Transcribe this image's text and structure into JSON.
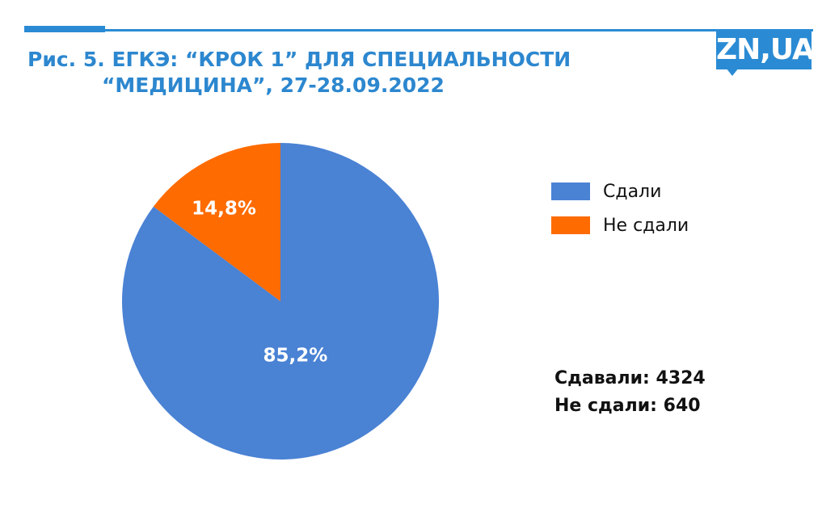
{
  "header": {
    "title_line1": "Рис. 5. ЕГКЭ: “КРОК 1” ДЛЯ СПЕЦИАЛЬНОСТИ",
    "title_line2": "“МЕДИЦИНА”, 27-28.09.2022",
    "logo": "ZN,UA"
  },
  "colors": {
    "accent": "#2a8bd4",
    "passed": "#4a82d4",
    "failed": "#fe6b00"
  },
  "chart_data": {
    "type": "pie",
    "categories": [
      "Сдали",
      "Не сдали"
    ],
    "values": [
      85.2,
      14.8
    ],
    "data_labels": [
      "85,2%",
      "14,8%"
    ],
    "legend_position": "right"
  },
  "stats": {
    "took_label": "Сдавали: 4324",
    "failed_label": "Не сдали: 640"
  }
}
